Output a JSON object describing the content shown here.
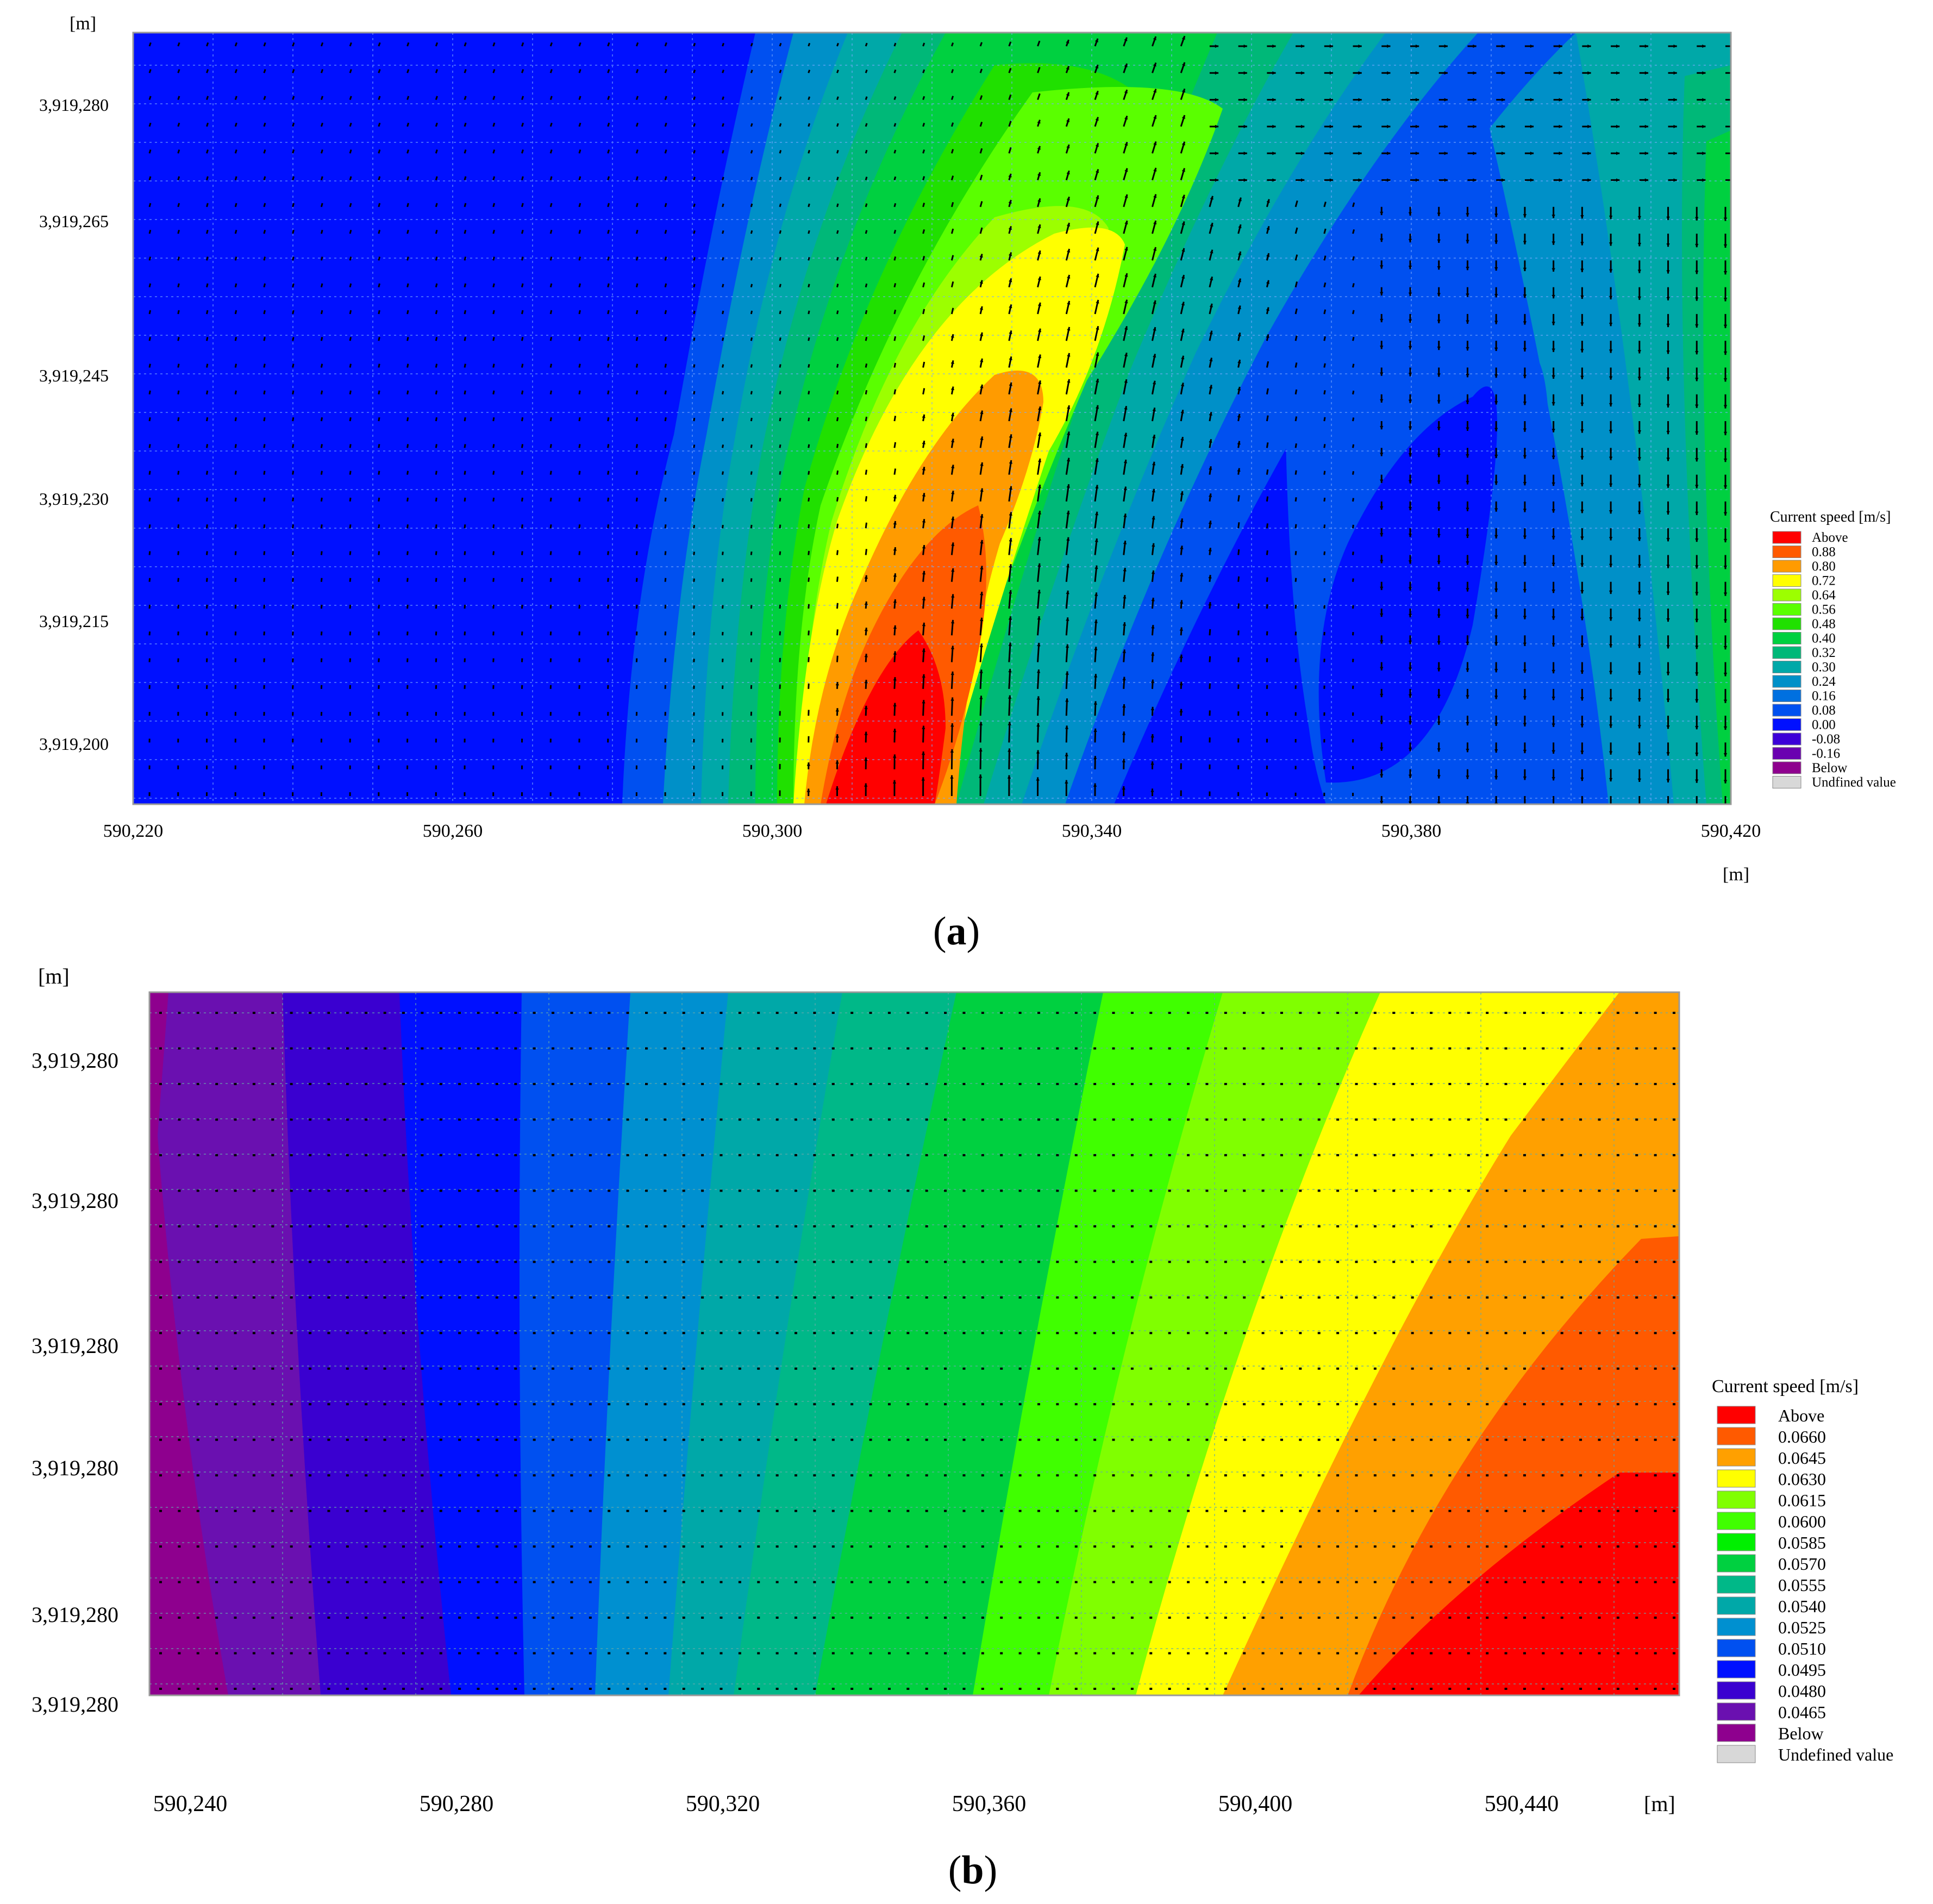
{
  "chart_data": [
    {
      "type": "heatmap",
      "panel_label": "a",
      "unit_x": "[m]",
      "unit_y": "[m]",
      "x_ticks": [
        "590,220",
        "590,260",
        "590,300",
        "590,340",
        "590,380",
        "590,420"
      ],
      "y_ticks": [
        "3,919,280",
        "3,919,265",
        "3,919,245",
        "3,919,230",
        "3,919,215",
        "3,919,200"
      ],
      "xlim": [
        590220,
        590420
      ],
      "ylim": [
        3919192,
        3919290
      ],
      "legend": {
        "title": "Current speed [m/s]",
        "labels": [
          "Above",
          "0.88",
          "0.80",
          "0.72",
          "0.64",
          "0.56",
          "0.48",
          "0.40",
          "0.32",
          "0.30",
          "0.24",
          "0.16",
          "0.08",
          "0.00",
          "-0.08",
          "-0.16",
          "Below",
          "Undfined value"
        ],
        "colors": [
          "#ff0000",
          "#ff5a00",
          "#ff9b00",
          "#ffff00",
          "#9cff00",
          "#5aff00",
          "#20e000",
          "#00d040",
          "#00b878",
          "#00a8a8",
          "#0090c8",
          "#0070e0",
          "#0050f0",
          "#0010ff",
          "#3c00d8",
          "#6a00b0",
          "#8e008e",
          "#d8d8d8"
        ]
      },
      "vectors": "current direction arrows on regular grid",
      "grid": true
    },
    {
      "type": "heatmap",
      "panel_label": "b",
      "unit_x": "[m]",
      "unit_y": "[m]",
      "x_ticks": [
        "590,240",
        "590,280",
        "590,320",
        "590,360",
        "590,400",
        "590,440"
      ],
      "y_ticks": [
        "3,919,280",
        "3,919,280",
        "3,919,280",
        "3,919,280",
        "3,919,280",
        "3,919,280"
      ],
      "legend": {
        "title": "Current speed [m/s]",
        "labels": [
          "Above",
          "0.0660",
          "0.0645",
          "0.0630",
          "0.0615",
          "0.0600",
          "0.0585",
          "0.0570",
          "0.0555",
          "0.0540",
          "0.0525",
          "0.0510",
          "0.0495",
          "0.0480",
          "0.0465",
          "Below",
          "Undefined value"
        ],
        "colors": [
          "#ff0000",
          "#ff5a00",
          "#ffa000",
          "#ffff00",
          "#80ff00",
          "#40ff00",
          "#00f000",
          "#00d040",
          "#00b888",
          "#00a8a8",
          "#0090d0",
          "#0050f0",
          "#0010ff",
          "#3a00d0",
          "#6a10b0",
          "#8e008e",
          "#d8d8d8"
        ]
      },
      "vectors": "dot markers on regular grid",
      "grid": true
    }
  ]
}
